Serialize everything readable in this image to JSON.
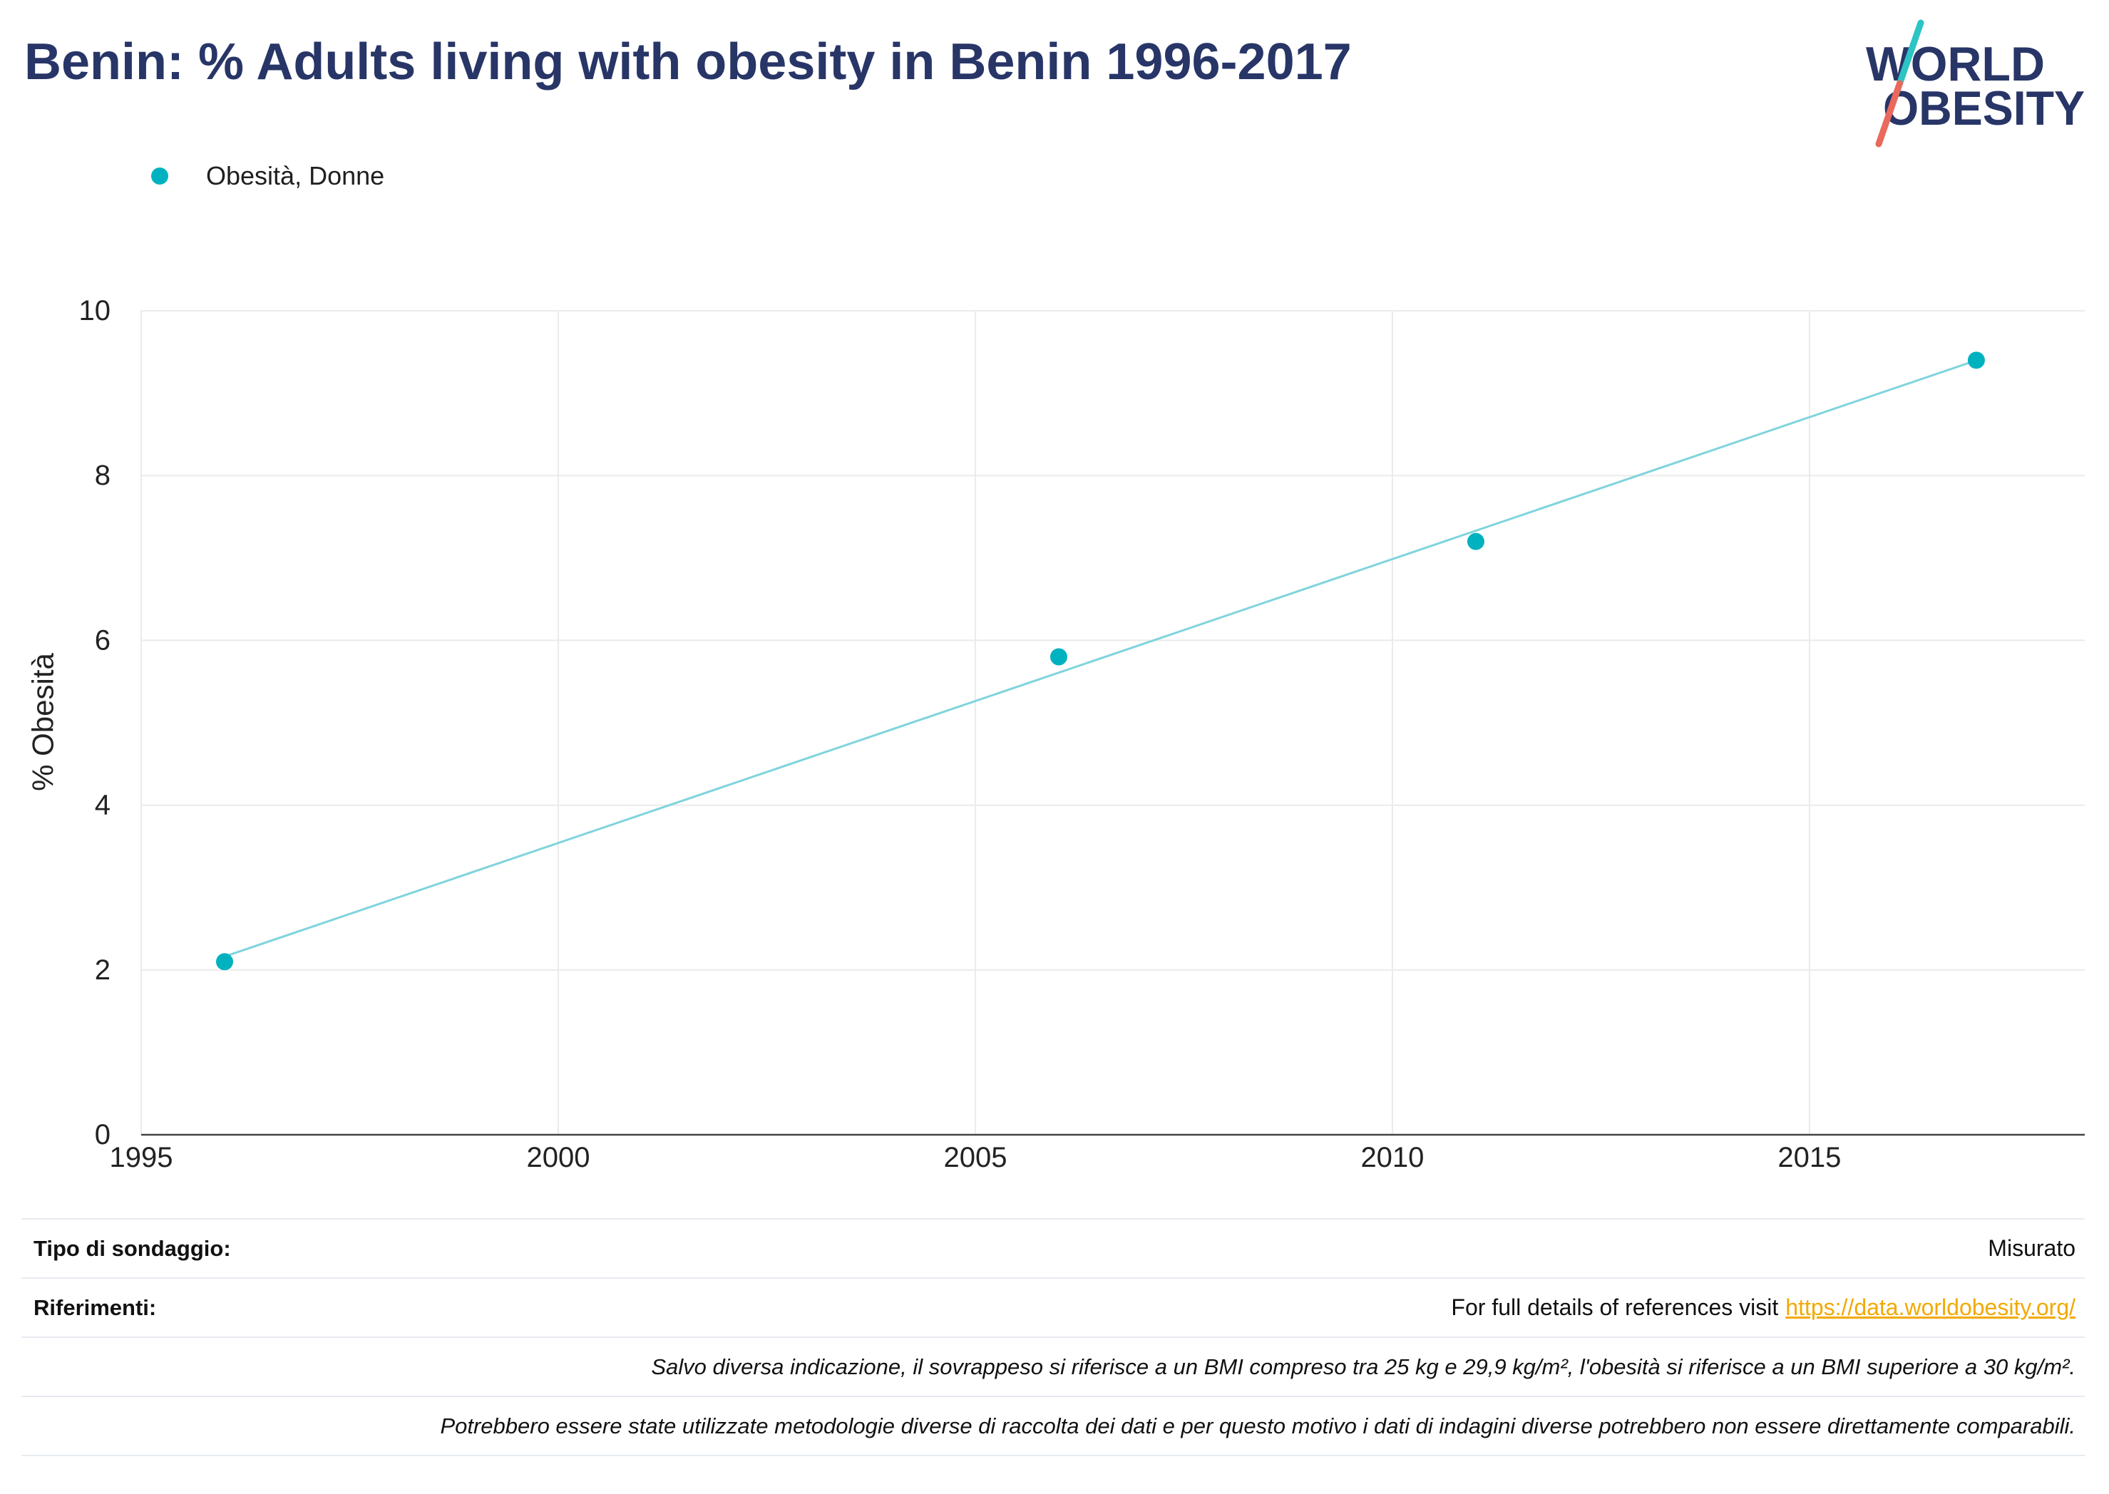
{
  "logo": {
    "line1": "WORLD",
    "line2": "OBESITY",
    "colors": {
      "navy": "#283567",
      "teal": "#2cc4c4",
      "coral": "#e9695c"
    }
  },
  "chart_data": {
    "type": "scatter",
    "title": "Benin: % Adults living with obesity in Benin 1996-2017",
    "ylabel": "% Obesità",
    "xlim": [
      1995,
      2018.3
    ],
    "ylim": [
      0,
      10
    ],
    "x_ticks": [
      1995,
      2000,
      2005,
      2010,
      2015
    ],
    "y_ticks": [
      0,
      2,
      4,
      6,
      8,
      10
    ],
    "grid": true,
    "legend_position": "top-left",
    "trendline": "linear",
    "series": [
      {
        "name": "Obesità, Donne",
        "color": "#00b2c0",
        "trendline_color": "#7fd4dc",
        "x": [
          1996,
          2006,
          2011,
          2017
        ],
        "y": [
          2.1,
          5.8,
          7.2,
          9.4
        ]
      }
    ]
  },
  "footer": {
    "survey_type": {
      "label": "Tipo di sondaggio:",
      "value": "Misurato"
    },
    "references": {
      "label": "Riferimenti:",
      "text": "For full details of references visit",
      "link": "https://data.worldobesity.org/"
    },
    "notes": [
      "Salvo diversa indicazione, il sovrappeso si riferisce a un BMI compreso tra 25 kg e 29,9 kg/m², l'obesità si riferisce a un BMI superiore a 30 kg/m².",
      "Potrebbero essere state utilizzate metodologie diverse di raccolta dei dati e per questo motivo i dati di indagini diverse potrebbero non essere direttamente comparabili."
    ]
  },
  "colors": {
    "title": "#283567",
    "link": "#f2a900",
    "grid": "#ebebeb",
    "axis": "#444444"
  }
}
